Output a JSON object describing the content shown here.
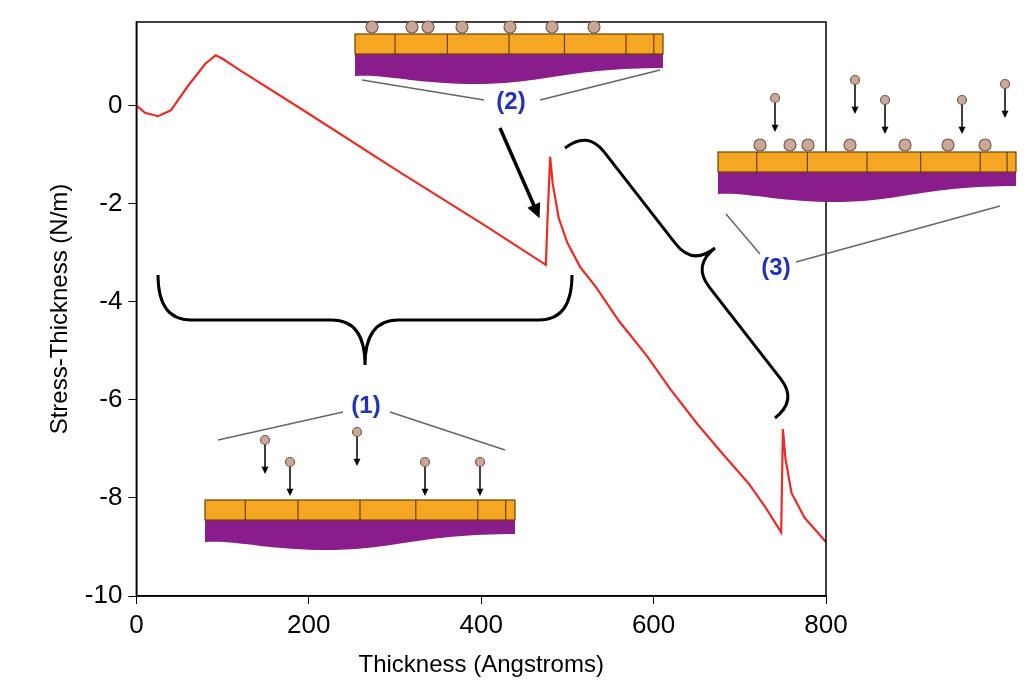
{
  "chart_data": {
    "type": "line",
    "x_label": "Thickness (Angstroms)",
    "y_label": "Stress-Thickness (N/m)",
    "x": [
      0,
      10,
      25,
      40,
      60,
      80,
      92,
      100,
      120,
      200,
      300,
      400,
      475,
      477,
      480,
      483,
      490,
      500,
      515,
      533,
      560,
      592,
      620,
      651,
      680,
      710,
      730,
      748,
      750,
      753,
      760,
      775,
      790,
      800
    ],
    "values": [
      0,
      -0.15,
      -0.22,
      -0.1,
      0.4,
      0.85,
      1.02,
      0.95,
      0.72,
      -0.17,
      -1.3,
      -2.4,
      -3.25,
      -2.3,
      -1.05,
      -1.6,
      -2.3,
      -2.8,
      -3.3,
      -3.7,
      -4.4,
      -5.1,
      -5.8,
      -6.5,
      -7.1,
      -7.7,
      -8.2,
      -8.7,
      -6.6,
      -7.2,
      -7.9,
      -8.4,
      -8.7,
      -8.9
    ],
    "color": "#ee2a24",
    "xlim": [
      0,
      800
    ],
    "xticks": [
      0,
      200,
      400,
      600,
      800
    ],
    "ylim": [
      -10,
      1.7
    ],
    "yticks": [
      -10,
      -8,
      -6,
      -4,
      -2,
      0
    ],
    "grid": false,
    "annotations": [
      "(1)",
      "(2)",
      "(3)"
    ]
  }
}
